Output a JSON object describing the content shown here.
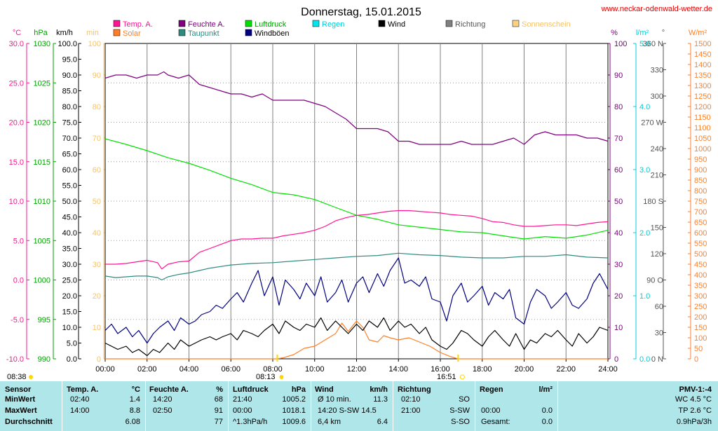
{
  "header": {
    "title": "Donnerstag, 15.01.2015",
    "website": "www.neckar-odenwald-wetter.de"
  },
  "legend": [
    {
      "label": "Temp. A.",
      "color": "#ff1493",
      "textColor": "#ff1493"
    },
    {
      "label": "Feuchte A.",
      "color": "#800080",
      "textColor": "#800080"
    },
    {
      "label": "Luftdruck",
      "color": "#00e000",
      "textColor": "#00a000"
    },
    {
      "label": "Regen",
      "color": "#00e5ee",
      "textColor": "#00cfd8"
    },
    {
      "label": "Wind",
      "color": "#000000",
      "textColor": "#000000"
    },
    {
      "label": "Richtung",
      "color": "#808080",
      "textColor": "#555555"
    },
    {
      "label": "Sonnenschein",
      "color": "#ffd27f",
      "textColor": "#f5c46a"
    },
    {
      "label": "Solar",
      "color": "#ff7f27",
      "textColor": "#ff7f27"
    },
    {
      "label": "Taupunkt",
      "color": "#2e8b80",
      "textColor": "#2e8b80"
    },
    {
      "label": "Windböen",
      "color": "#000080",
      "textColor": "#000000"
    }
  ],
  "axis_units": {
    "temp": "°C",
    "pressure": "hPa",
    "wind": "km/h",
    "sun": "min",
    "humidity": "%",
    "rain": "l/m²",
    "direction": "°",
    "solar": "W/m²"
  },
  "axis_colors": {
    "temp": "#ff1493",
    "pressure": "#00a000",
    "wind": "#000000",
    "sun": "#f5c46a",
    "humidity": "#800080",
    "rain": "#00cfd8",
    "direction": "#555555",
    "solar": "#ff7f27"
  },
  "axis_ticks": {
    "temp": [
      "30.0",
      "25.0",
      "20.0",
      "15.0",
      "10.0",
      "5.0",
      "0.0",
      "-5.0",
      "-10.0"
    ],
    "pressure": [
      "1030",
      "1025",
      "1020",
      "1015",
      "1010",
      "1005",
      "1000",
      "995",
      "990"
    ],
    "wind": [
      "100.0",
      "95.0",
      "90.0",
      "85.0",
      "80.0",
      "75.0",
      "70.0",
      "65.0",
      "60.0",
      "55.0",
      "50.0",
      "45.0",
      "40.0",
      "35.0",
      "30.0",
      "25.0",
      "20.0",
      "15.0",
      "10.0",
      "5.0",
      "0.0"
    ],
    "sun": [
      "100",
      "90",
      "80",
      "70",
      "60",
      "50",
      "40",
      "30",
      "20",
      "10",
      "0"
    ],
    "humidity": [
      "100",
      "90",
      "80",
      "70",
      "60",
      "50",
      "40",
      "30",
      "20",
      "10",
      "0"
    ],
    "rain": [
      "5.0",
      "4.0",
      "3.0",
      "2.0",
      "1.0",
      "0.0"
    ],
    "direction": [
      "360 N",
      "330",
      "300",
      "270 W",
      "240",
      "210",
      "180 S",
      "150",
      "120",
      "90 O",
      "60",
      "30",
      "0 N"
    ],
    "solar": [
      "1500",
      "1450",
      "1400",
      "1350",
      "1300",
      "1250",
      "1200",
      "1150",
      "1100",
      "1050",
      "1000",
      "950",
      "900",
      "850",
      "800",
      "750",
      "700",
      "650",
      "600",
      "550",
      "500",
      "450",
      "400",
      "350",
      "300",
      "250",
      "200",
      "150",
      "100",
      "50",
      "0"
    ],
    "time": [
      "00:00",
      "02:00",
      "04:00",
      "06:00",
      "08:00",
      "10:00",
      "12:00",
      "14:00",
      "16:00",
      "18:00",
      "20:00",
      "22:00",
      "24:00"
    ]
  },
  "sun_markers": {
    "sunrise": "08:13",
    "sunset": "16:51",
    "sunshine_total": "08:38"
  },
  "chart_data": {
    "type": "line",
    "title": "Donnerstag, 15.01.2015",
    "x_unit": "hours",
    "xlim": [
      0,
      24
    ],
    "series": [
      {
        "name": "Temp. A.",
        "unit": "°C",
        "ylim": [
          -10,
          30
        ],
        "x": [
          0,
          0.5,
          1,
          1.5,
          2,
          2.5,
          2.7,
          3,
          3.5,
          4,
          4.5,
          5,
          5.5,
          6,
          6.5,
          7,
          7.5,
          8,
          8.5,
          9,
          9.5,
          10,
          10.5,
          11,
          11.5,
          12,
          12.5,
          13,
          13.5,
          14,
          14.5,
          15,
          15.5,
          16,
          16.5,
          17,
          17.5,
          18,
          18.5,
          19,
          19.5,
          20,
          20.5,
          21,
          21.5,
          22,
          22.5,
          23,
          23.5,
          24
        ],
        "values": [
          2.0,
          2.0,
          2.1,
          2.3,
          2.5,
          2.2,
          1.4,
          2.0,
          2.3,
          2.4,
          3.5,
          4.0,
          4.5,
          5.0,
          5.2,
          5.2,
          5.3,
          5.3,
          5.6,
          5.8,
          6.0,
          6.3,
          6.8,
          7.5,
          7.9,
          8.2,
          8.3,
          8.5,
          8.7,
          8.8,
          8.8,
          8.7,
          8.6,
          8.5,
          8.3,
          8.2,
          8.1,
          7.8,
          7.4,
          7.3,
          7.0,
          6.8,
          6.8,
          6.9,
          7.0,
          7.0,
          6.9,
          7.1,
          7.3,
          7.4
        ]
      },
      {
        "name": "Feuchte A.",
        "unit": "%",
        "ylim": [
          0,
          100
        ],
        "x": [
          0,
          0.5,
          1,
          1.5,
          2,
          2.5,
          2.8,
          3,
          3.5,
          4,
          4.5,
          5,
          5.5,
          6,
          6.5,
          7,
          7.5,
          8,
          8.5,
          9,
          9.5,
          10,
          10.5,
          11,
          11.5,
          12,
          12.5,
          13,
          13.5,
          14,
          14.5,
          15,
          15.5,
          16,
          16.5,
          17,
          17.5,
          18,
          18.5,
          19,
          19.5,
          20,
          20.5,
          21,
          21.5,
          22,
          22.5,
          23,
          23.5,
          24
        ],
        "values": [
          89,
          90,
          90,
          89,
          90,
          90,
          91,
          90,
          89,
          90,
          87,
          86,
          85,
          84,
          84,
          83,
          84,
          82,
          82,
          82,
          82,
          81,
          80,
          78,
          76,
          73,
          73,
          73,
          72,
          69,
          69,
          68,
          68,
          68,
          68,
          69,
          68,
          68,
          68,
          69,
          70,
          68,
          71,
          72,
          71,
          71,
          71,
          70,
          70,
          69
        ]
      },
      {
        "name": "Luftdruck",
        "unit": "hPa",
        "ylim": [
          990,
          1030
        ],
        "x": [
          0,
          1,
          2,
          3,
          4,
          5,
          6,
          7,
          8,
          9,
          10,
          11,
          12,
          13,
          14,
          15,
          16,
          17,
          18,
          19,
          20,
          21,
          22,
          23,
          24
        ],
        "values": [
          1017.9,
          1017.2,
          1016.4,
          1015.5,
          1014.8,
          1013.9,
          1012.9,
          1012.1,
          1011.1,
          1010.8,
          1010.2,
          1009.2,
          1008.2,
          1007.7,
          1007.0,
          1006.7,
          1006.4,
          1006.1,
          1006.0,
          1005.6,
          1005.2,
          1005.5,
          1005.3,
          1005.7,
          1006.3
        ]
      },
      {
        "name": "Taupunkt",
        "unit": "°C",
        "ylim": [
          -10,
          30
        ],
        "x": [
          0,
          0.5,
          1,
          1.5,
          2,
          2.5,
          2.7,
          3,
          3.5,
          4,
          4.5,
          5,
          6,
          7,
          8,
          9,
          10,
          11,
          12,
          13,
          14,
          15,
          16,
          17,
          18,
          19,
          20,
          21,
          22,
          23,
          24
        ],
        "values": [
          0.5,
          0.3,
          0.4,
          0.5,
          0.5,
          0.3,
          0.0,
          0.4,
          0.7,
          0.9,
          1.2,
          1.5,
          1.9,
          2.1,
          2.2,
          2.4,
          2.6,
          2.8,
          3.0,
          3.1,
          3.4,
          3.2,
          3.1,
          2.9,
          2.8,
          2.8,
          3.0,
          3.0,
          3.2,
          2.9,
          2.8
        ]
      },
      {
        "name": "Wind",
        "unit": "km/h",
        "ylim": [
          0,
          100
        ],
        "x": [
          0,
          0.3,
          0.6,
          1,
          1.3,
          1.6,
          2,
          2.3,
          2.6,
          3,
          3.3,
          3.6,
          4,
          4.3,
          4.6,
          5,
          5.3,
          5.6,
          6,
          6.3,
          6.6,
          7,
          7.3,
          7.6,
          8,
          8.3,
          8.6,
          9,
          9.3,
          9.6,
          10,
          10.3,
          10.6,
          11,
          11.3,
          11.6,
          12,
          12.3,
          12.6,
          13,
          13.3,
          13.6,
          14,
          14.3,
          14.6,
          15,
          15.3,
          15.6,
          16,
          16.3,
          16.6,
          17,
          17.3,
          17.6,
          18,
          18.3,
          18.6,
          19,
          19.3,
          19.6,
          20,
          20.3,
          20.6,
          21,
          21.3,
          21.6,
          22,
          22.3,
          22.6,
          23,
          23.3,
          23.6,
          24
        ],
        "values": [
          5,
          4,
          3,
          4,
          2,
          3,
          1,
          3,
          2,
          5,
          3,
          6,
          4,
          5,
          6,
          7,
          6,
          7,
          8,
          6,
          9,
          8,
          7,
          9,
          11,
          8,
          12,
          10,
          9,
          11,
          10,
          13,
          9,
          12,
          10,
          8,
          11,
          9,
          12,
          10,
          13,
          9,
          12,
          10,
          11,
          8,
          10,
          6,
          4,
          3,
          5,
          9,
          8,
          6,
          4,
          7,
          9,
          6,
          4,
          8,
          3,
          6,
          5,
          8,
          7,
          9,
          6,
          4,
          8,
          5,
          7,
          10,
          9
        ]
      },
      {
        "name": "Windböen",
        "unit": "km/h",
        "ylim": [
          0,
          100
        ],
        "x": [
          0,
          0.3,
          0.6,
          1,
          1.3,
          1.6,
          2,
          2.3,
          2.6,
          3,
          3.3,
          3.6,
          4,
          4.3,
          4.6,
          5,
          5.3,
          5.6,
          6,
          6.3,
          6.6,
          7,
          7.3,
          7.6,
          8,
          8.3,
          8.6,
          9,
          9.3,
          9.6,
          10,
          10.3,
          10.6,
          11,
          11.3,
          11.6,
          12,
          12.3,
          12.6,
          13,
          13.3,
          13.6,
          14,
          14.3,
          14.6,
          15,
          15.3,
          15.6,
          16,
          16.3,
          16.6,
          17,
          17.3,
          17.6,
          18,
          18.3,
          18.6,
          19,
          19.3,
          19.6,
          20,
          20.3,
          20.6,
          21,
          21.3,
          21.6,
          22,
          22.3,
          22.6,
          23,
          23.3,
          23.6,
          24
        ],
        "values": [
          9,
          11,
          8,
          10,
          7,
          9,
          5,
          8,
          10,
          12,
          9,
          13,
          11,
          12,
          14,
          15,
          17,
          16,
          19,
          21,
          18,
          24,
          28,
          20,
          26,
          17,
          25,
          22,
          19,
          24,
          20,
          26,
          18,
          21,
          25,
          18,
          24,
          26,
          21,
          27,
          23,
          28,
          32,
          24,
          25,
          23,
          26,
          19,
          18,
          12,
          20,
          24,
          18,
          20,
          23,
          17,
          21,
          19,
          22,
          13,
          11,
          18,
          22,
          20,
          16,
          18,
          21,
          17,
          16,
          19,
          24,
          27,
          22
        ]
      },
      {
        "name": "Solar",
        "unit": "W/m²",
        "ylim": [
          0,
          1500
        ],
        "x": [
          0,
          8.2,
          8.5,
          9,
          9.5,
          10,
          10.5,
          11,
          11.3,
          11.6,
          12,
          12.3,
          12.6,
          13,
          13.3,
          13.6,
          14,
          14.5,
          15,
          15.5,
          16,
          16.5,
          16.85,
          24
        ],
        "values": [
          0,
          0,
          5,
          20,
          50,
          60,
          90,
          120,
          170,
          130,
          180,
          150,
          90,
          80,
          110,
          100,
          90,
          100,
          80,
          60,
          30,
          10,
          0,
          0
        ]
      }
    ],
    "table": {
      "headers": [
        {
          "label": "Sensor",
          "unit": ""
        },
        {
          "label": "Temp. A.",
          "unit": "°C"
        },
        {
          "label": "Feuchte A.",
          "unit": "%"
        },
        {
          "label": "Luftdruck",
          "unit": "hPa"
        },
        {
          "label": "Wind",
          "unit": "km/h"
        },
        {
          "label": "Richtung",
          "unit": ""
        },
        {
          "label": "Regen",
          "unit": "l/m²"
        },
        {
          "label": "PMV-1:-4",
          "unit": ""
        }
      ],
      "rows": [
        {
          "label": "MinWert",
          "temp_time": "02:40",
          "temp_val": "1.4",
          "hum_time": "14:20",
          "hum_val": "68",
          "press_time": "21:40",
          "press_val": "1005.2",
          "wind_desc": "Ø 10 min.",
          "wind_val": "11.3",
          "dir_time": "02:10",
          "dir_val": "SO",
          "rain_time": "",
          "rain_val": "",
          "pmv": "WC 4.5 °C"
        },
        {
          "label": "MaxWert",
          "temp_time": "14:00",
          "temp_val": "8.8",
          "hum_time": "02:50",
          "hum_val": "91",
          "press_time": "00:00",
          "press_val": "1018.1",
          "wind_desc": "14:20   S-SW 14.5",
          "wind_val": "",
          "dir_time": "21:00",
          "dir_val": "S-SW",
          "rain_time": "00:00",
          "rain_val": "0.0",
          "pmv": "TP 2.6 °C"
        },
        {
          "label": "Durchschnitt",
          "temp_time": "",
          "temp_val": "6.08",
          "hum_time": "",
          "hum_val": "77",
          "press_time": "^1.3hPa/h",
          "press_val": "1009.6",
          "wind_desc": "6,4 km",
          "wind_val": "6.4",
          "dir_time": "",
          "dir_val": "S-SO",
          "rain_time": "Gesamt:",
          "rain_val": "0.0",
          "pmv": "0.9hPa/3h"
        }
      ]
    }
  }
}
